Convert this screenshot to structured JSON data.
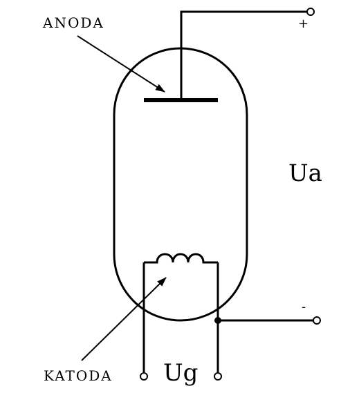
{
  "labels": {
    "anode": "ANODA",
    "cathode": "KATODA",
    "anode_voltage": "Ua",
    "heater_voltage": "Ug",
    "plus_sign": "+",
    "minus_sign": "-"
  }
}
